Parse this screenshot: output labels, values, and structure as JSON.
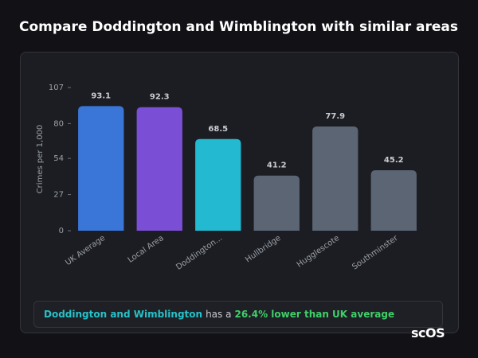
{
  "chart_data": {
    "type": "bar",
    "title": "Compare Doddington and Wimblington with similar areas",
    "y_label": "Crimes per 1,000",
    "categories": [
      "UK Average",
      "Local Area",
      "Doddington...",
      "Hullbridge",
      "Hugglescote",
      "Southminster"
    ],
    "values": [
      93.1,
      92.3,
      68.5,
      41.2,
      77.9,
      45.2
    ],
    "colors": [
      "#3a76d8",
      "#7a4fd5",
      "#22b9d1",
      "#5b6574",
      "#5b6574",
      "#5b6574"
    ],
    "ylim": [
      0,
      107
    ],
    "yticks": [
      0,
      27,
      54,
      80,
      107
    ]
  },
  "summary": {
    "place": "Doddington and Wimblington",
    "text": "has a",
    "highlight": "26.4% lower than UK average"
  },
  "brand": "scOS"
}
